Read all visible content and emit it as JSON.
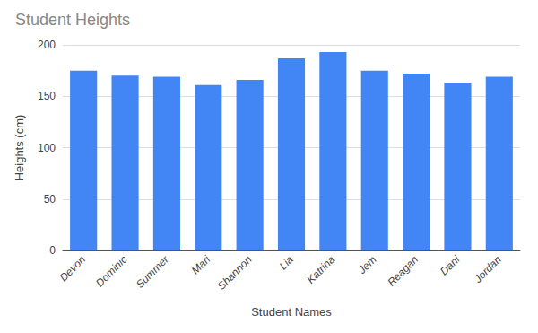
{
  "chart_data": {
    "type": "bar",
    "title": "Student Heights",
    "xlabel": "Student Names",
    "ylabel": "Heights (cm)",
    "categories": [
      "Devon",
      "Dominic",
      "Summer",
      "Mari",
      "Shannon",
      "Lia",
      "Katrina",
      "Jem",
      "Reagan",
      "Dani",
      "Jordan"
    ],
    "values": [
      175,
      170,
      169,
      161,
      166,
      187,
      193,
      175,
      172,
      163,
      169
    ],
    "color": "#4285F4",
    "ylim": [
      0,
      200
    ],
    "yticks": [
      0,
      50,
      100,
      150,
      200
    ],
    "grid": true
  }
}
